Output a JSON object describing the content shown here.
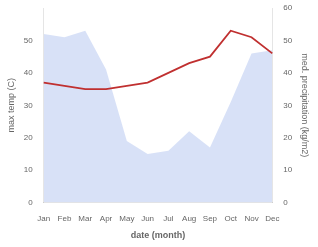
{
  "chart_data": {
    "type": "line",
    "categories": [
      "Jan",
      "Feb",
      "Mar",
      "Apr",
      "May",
      "Jun",
      "Jul",
      "Aug",
      "Sep",
      "Oct",
      "Nov",
      "Dec"
    ],
    "xlabel": "date (month)",
    "ylabel": "max temp (C)",
    "y2label": "med. precipitation (kg/m2)",
    "series": [
      {
        "type": "area",
        "color": "#b8c8f0",
        "axis": "y2",
        "values": [
          52,
          51,
          53,
          41,
          19,
          15,
          16,
          22,
          17,
          31,
          46,
          47
        ]
      },
      {
        "type": "line",
        "color": "#c03030",
        "values": [
          37,
          36,
          35,
          35,
          36,
          37,
          40,
          43,
          45,
          53,
          51,
          46
        ]
      }
    ],
    "ylim": [
      0,
      60
    ],
    "yticks": [
      0,
      10,
      20,
      30,
      40,
      50
    ],
    "y2lim": [
      0,
      60
    ],
    "y2ticks": [
      0,
      10,
      20,
      30,
      40,
      50,
      60
    ],
    "grid": false
  }
}
